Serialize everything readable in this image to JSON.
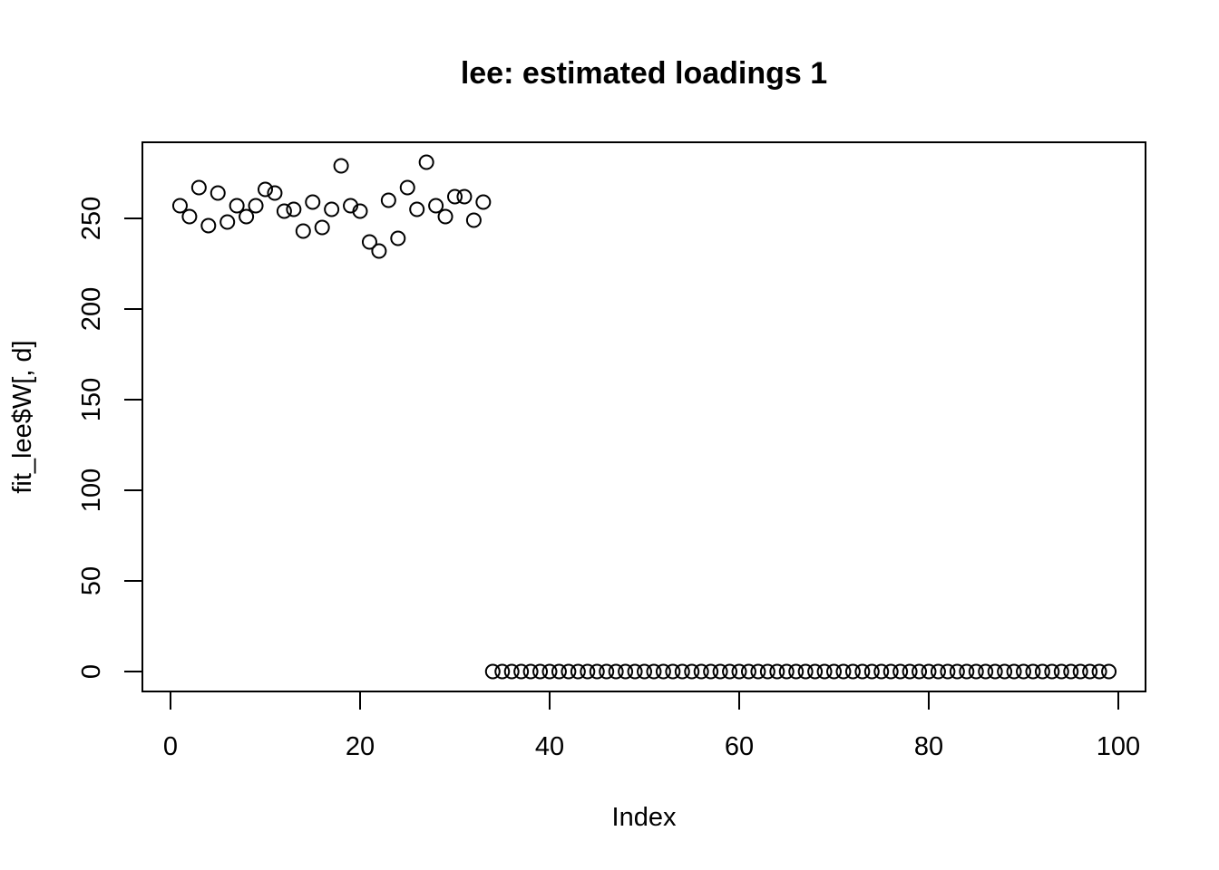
{
  "chart_data": {
    "type": "scatter",
    "title": "lee: estimated loadings 1",
    "xlabel": "Index",
    "ylabel": "fit_lee$W[, d]",
    "xlim": [
      0,
      100
    ],
    "ylim": [
      0,
      275
    ],
    "x_ticks": [
      0,
      20,
      40,
      60,
      80,
      100
    ],
    "y_ticks": [
      0,
      50,
      100,
      150,
      200,
      250
    ],
    "x_tick_labels": [
      "0",
      "20",
      "40",
      "60",
      "80",
      "100"
    ],
    "y_tick_labels": [
      "0",
      "50",
      "100",
      "150",
      "200",
      "250"
    ],
    "grid": false,
    "legend": "none",
    "marker": "open-circle",
    "colors": {
      "points": "#000000",
      "axes": "#000000",
      "background": "#ffffff"
    },
    "series": [
      {
        "x": [
          1,
          2,
          3,
          4,
          5,
          6,
          7,
          8,
          9,
          10,
          11,
          12,
          13,
          14,
          15,
          16,
          17,
          18,
          19,
          20,
          21,
          22,
          23,
          24,
          25,
          26,
          27,
          28,
          29,
          30,
          31,
          32,
          33,
          34,
          35,
          36,
          37,
          38,
          39,
          40,
          41,
          42,
          43,
          44,
          45,
          46,
          47,
          48,
          49,
          50,
          51,
          52,
          53,
          54,
          55,
          56,
          57,
          58,
          59,
          60,
          61,
          62,
          63,
          64,
          65,
          66,
          67,
          68,
          69,
          70,
          71,
          72,
          73,
          74,
          75,
          76,
          77,
          78,
          79,
          80,
          81,
          82,
          83,
          84,
          85,
          86,
          87,
          88,
          89,
          90,
          91,
          92,
          93,
          94,
          95,
          96,
          97,
          98,
          99
        ],
        "y": [
          257,
          251,
          267,
          246,
          264,
          248,
          257,
          251,
          257,
          266,
          264,
          254,
          255,
          243,
          259,
          245,
          255,
          279,
          257,
          254,
          237,
          232,
          260,
          239,
          267,
          255,
          281,
          257,
          251,
          262,
          262,
          249,
          259,
          0,
          0,
          0,
          0,
          0,
          0,
          0,
          0,
          0,
          0,
          0,
          0,
          0,
          0,
          0,
          0,
          0,
          0,
          0,
          0,
          0,
          0,
          0,
          0,
          0,
          0,
          0,
          0,
          0,
          0,
          0,
          0,
          0,
          0,
          0,
          0,
          0,
          0,
          0,
          0,
          0,
          0,
          0,
          0,
          0,
          0,
          0,
          0,
          0,
          0,
          0,
          0,
          0,
          0,
          0,
          0,
          0,
          0,
          0,
          0,
          0,
          0,
          0,
          0,
          0,
          0
        ]
      }
    ]
  }
}
